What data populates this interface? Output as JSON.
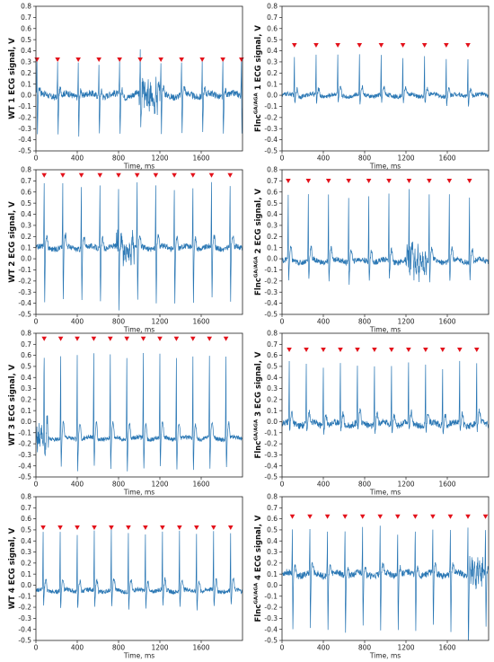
{
  "colors": {
    "trace": "#2a77b4",
    "marker": "#e3121b",
    "axis": "#222222"
  },
  "chart_data": [
    {
      "type": "line",
      "ylabel_main": "WT 1 ECG signal, V",
      "ylabel_sup": "",
      "xlabel": "Time, ms",
      "xlim": [
        0,
        2000
      ],
      "ylim": [
        -0.5,
        0.8
      ],
      "yticks": [
        -0.5,
        -0.4,
        -0.3,
        -0.2,
        -0.1,
        0.0,
        0.1,
        0.2,
        0.3,
        0.4,
        0.5,
        0.6,
        0.7,
        0.8
      ],
      "yticklabels": [
        "-0.5",
        "-0.4",
        "-0.3",
        "-0.2",
        "-0.1",
        "0.0",
        "0.1",
        "0.2",
        "0.3",
        "0.4",
        "0.5",
        "0.6",
        "0.7",
        "0.8"
      ],
      "xticks": [
        0,
        400,
        800,
        1200,
        1600
      ],
      "xticklabels": [
        "0",
        "400",
        "800",
        "1200",
        "1600"
      ],
      "baseline": 0.0,
      "r_peak": 0.3,
      "s_trough": -0.35,
      "noise": 0.03,
      "burst": [
        1000,
        1200
      ],
      "beats_ms": [
        10,
        210,
        410,
        610,
        810,
        1010,
        1210,
        1410,
        1610,
        1810,
        1990
      ],
      "marker_y": 0.32
    },
    {
      "type": "line",
      "ylabel_main": "Flnc",
      "ylabel_sup": "GA/AGA",
      "ylabel_end": " 1 ECG signal, V",
      "xlabel": "Time, ms",
      "xlim": [
        0,
        2000
      ],
      "ylim": [
        -0.5,
        0.8
      ],
      "yticks": [
        -0.5,
        -0.4,
        -0.3,
        -0.2,
        -0.1,
        0.0,
        0.1,
        0.2,
        0.3,
        0.4,
        0.5,
        0.6,
        0.7,
        0.8
      ],
      "yticklabels": [
        "-0.5",
        "-0.4",
        "-0.3",
        "-0.2",
        "-0.1",
        "0.0",
        "0.1",
        "0.2",
        "0.3",
        "0.4",
        "0.5",
        "0.6",
        "0.7",
        "0.8"
      ],
      "xticks": [
        0,
        400,
        800,
        1200,
        1600
      ],
      "xticklabels": [
        "0",
        "400",
        "800",
        "1200",
        "1600"
      ],
      "baseline": 0.0,
      "r_peak": 0.35,
      "s_trough": -0.08,
      "noise": 0.02,
      "burst": null,
      "beats_ms": [
        120,
        330,
        540,
        750,
        960,
        1170,
        1380,
        1590,
        1800
      ],
      "marker_y": 0.45
    },
    {
      "type": "line",
      "ylabel_main": "WT 2 ECG signal, V",
      "ylabel_sup": "",
      "xlabel": "Time, ms",
      "xlim": [
        0,
        2000
      ],
      "ylim": [
        -0.5,
        0.8
      ],
      "yticks": [
        -0.5,
        -0.4,
        -0.3,
        -0.2,
        -0.1,
        0.0,
        0.1,
        0.2,
        0.3,
        0.4,
        0.5,
        0.6,
        0.7,
        0.8
      ],
      "yticklabels": [
        "-0.5",
        "-0.4",
        "-0.3",
        "-0.2",
        "-0.1",
        "0.0",
        "0.1",
        "0.2",
        "0.3",
        "0.4",
        "0.5",
        "0.6",
        "0.7",
        "0.8"
      ],
      "xticks": [
        0,
        400,
        800,
        1200,
        1600
      ],
      "xticklabels": [
        "0",
        "400",
        "800",
        "1200",
        "1600"
      ],
      "baseline": 0.1,
      "r_peak": 0.65,
      "s_trough": -0.38,
      "noise": 0.025,
      "burst": [
        780,
        950
      ],
      "beats_ms": [
        80,
        260,
        440,
        620,
        800,
        980,
        1160,
        1340,
        1520,
        1700,
        1880
      ],
      "marker_y": 0.75
    },
    {
      "type": "line",
      "ylabel_main": "Flnc",
      "ylabel_sup": "GA/AGA",
      "ylabel_end": " 2 ECG signal, V",
      "xlabel": "Time, ms",
      "xlim": [
        0,
        2000
      ],
      "ylim": [
        -0.5,
        0.8
      ],
      "yticks": [
        -0.5,
        -0.4,
        -0.3,
        -0.2,
        -0.1,
        0.0,
        0.1,
        0.2,
        0.3,
        0.4,
        0.5,
        0.6,
        0.7,
        0.8
      ],
      "yticklabels": [
        "-0.5",
        "-0.4",
        "-0.3",
        "-0.2",
        "-0.1",
        "0.0",
        "0.1",
        "0.2",
        "0.3",
        "0.4",
        "0.5",
        "0.6",
        "0.7",
        "0.8"
      ],
      "xticks": [
        0,
        400,
        800,
        1200,
        1600
      ],
      "xticklabels": [
        "0",
        "400",
        "800",
        "1200",
        "1600"
      ],
      "baseline": -0.02,
      "r_peak": 0.58,
      "s_trough": -0.2,
      "noise": 0.025,
      "burst": [
        1200,
        1400
      ],
      "beats_ms": [
        60,
        255,
        450,
        645,
        840,
        1035,
        1230,
        1425,
        1620,
        1815
      ],
      "marker_y": 0.7
    },
    {
      "type": "line",
      "ylabel_main": "WT 3 ECG signal, V",
      "ylabel_sup": "",
      "xlabel": "Time, ms",
      "xlim": [
        0,
        2000
      ],
      "ylim": [
        -0.5,
        0.8
      ],
      "yticks": [
        -0.5,
        -0.4,
        -0.3,
        -0.2,
        -0.1,
        0.0,
        0.1,
        0.2,
        0.3,
        0.4,
        0.5,
        0.6,
        0.7,
        0.8
      ],
      "yticklabels": [
        "-0.5",
        "-0.4",
        "-0.3",
        "-0.2",
        "-0.1",
        "0.0",
        "0.1",
        "0.2",
        "0.3",
        "0.4",
        "0.5",
        "0.6",
        "0.7",
        "0.8"
      ],
      "xticks": [
        0,
        400,
        800,
        1200,
        1600
      ],
      "xticklabels": [
        "0",
        "400",
        "800",
        "1200",
        "1600"
      ],
      "baseline": -0.15,
      "r_peak": 0.6,
      "s_trough": -0.42,
      "noise": 0.02,
      "burst": [
        0,
        120
      ],
      "beats_ms": [
        80,
        240,
        400,
        560,
        720,
        880,
        1040,
        1200,
        1360,
        1520,
        1680,
        1840
      ],
      "marker_y": 0.75
    },
    {
      "type": "line",
      "ylabel_main": "Flnc",
      "ylabel_sup": "GA/AGA",
      "ylabel_end": " 3 ECG signal, V",
      "xlabel": "Time, ms",
      "xlim": [
        0,
        2000
      ],
      "ylim": [
        -0.5,
        0.8
      ],
      "yticks": [
        -0.5,
        -0.4,
        -0.3,
        -0.2,
        -0.1,
        0.0,
        0.1,
        0.2,
        0.3,
        0.4,
        0.5,
        0.6,
        0.7,
        0.8
      ],
      "yticklabels": [
        "-0.5",
        "-0.4",
        "-0.3",
        "-0.2",
        "-0.1",
        "0.0",
        "0.1",
        "0.2",
        "0.3",
        "0.4",
        "0.5",
        "0.6",
        "0.7",
        "0.8"
      ],
      "xticks": [
        0,
        400,
        800,
        1200,
        1600
      ],
      "xticklabels": [
        "0",
        "400",
        "800",
        "1200",
        "1600"
      ],
      "baseline": -0.02,
      "r_peak": 0.52,
      "s_trough": -0.08,
      "noise": 0.03,
      "burst": null,
      "beats_ms": [
        70,
        235,
        400,
        565,
        730,
        895,
        1060,
        1225,
        1390,
        1555,
        1720,
        1885
      ],
      "marker_y": 0.65
    },
    {
      "type": "line",
      "ylabel_main": "WT 4 ECG signal, V",
      "ylabel_sup": "",
      "xlabel": "Time, ms",
      "xlim": [
        0,
        2000
      ],
      "ylim": [
        -0.5,
        0.8
      ],
      "yticks": [
        -0.5,
        -0.4,
        -0.3,
        -0.2,
        -0.1,
        0.0,
        0.1,
        0.2,
        0.3,
        0.4,
        0.5,
        0.6,
        0.7,
        0.8
      ],
      "yticklabels": [
        "-0.5",
        "-0.4",
        "-0.3",
        "-0.2",
        "-0.1",
        "0.0",
        "0.1",
        "0.2",
        "0.3",
        "0.4",
        "0.5",
        "0.6",
        "0.7",
        "0.8"
      ],
      "xticks": [
        0,
        400,
        800,
        1200,
        1600
      ],
      "xticklabels": [
        "0",
        "400",
        "800",
        "1200",
        "1600"
      ],
      "baseline": -0.05,
      "r_peak": 0.48,
      "s_trough": -0.2,
      "noise": 0.02,
      "burst": null,
      "beats_ms": [
        70,
        235,
        400,
        565,
        730,
        895,
        1060,
        1225,
        1390,
        1555,
        1720,
        1885
      ],
      "marker_y": 0.52
    },
    {
      "type": "line",
      "ylabel_main": "Flnc",
      "ylabel_sup": "GA/AGA",
      "ylabel_end": " 4 ECG signal, V",
      "xlabel": "Time, ms",
      "xlim": [
        0,
        2000
      ],
      "ylim": [
        -0.5,
        0.8
      ],
      "yticks": [
        -0.5,
        -0.4,
        -0.3,
        -0.2,
        -0.1,
        0.0,
        0.1,
        0.2,
        0.3,
        0.4,
        0.5,
        0.6,
        0.7,
        0.8
      ],
      "yticklabels": [
        "-0.5",
        "-0.4",
        "-0.3",
        "-0.2",
        "-0.1",
        "0.0",
        "0.1",
        "0.2",
        "0.3",
        "0.4",
        "0.5",
        "0.6",
        "0.7",
        "0.8"
      ],
      "xticks": [
        0,
        400,
        800,
        1200,
        1600
      ],
      "xticklabels": [
        "0",
        "400",
        "800",
        "1200",
        "1600"
      ],
      "baseline": 0.1,
      "r_peak": 0.5,
      "s_trough": -0.4,
      "noise": 0.03,
      "burst": [
        1800,
        1950
      ],
      "beats_ms": [
        100,
        270,
        440,
        610,
        780,
        950,
        1120,
        1290,
        1460,
        1630,
        1800,
        1970
      ],
      "marker_y": 0.62
    }
  ]
}
